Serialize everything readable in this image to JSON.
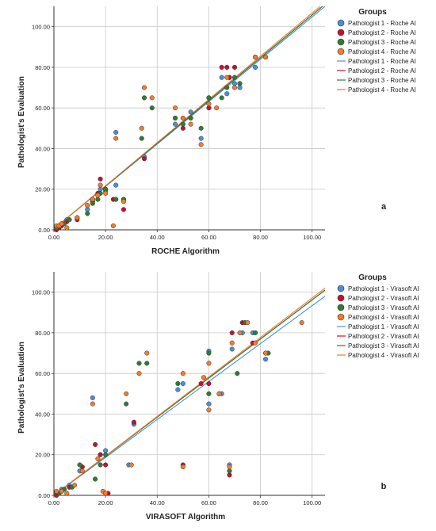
{
  "chart_data": [
    {
      "type": "scatter",
      "panel_label": "a",
      "xlabel": "ROCHE Algorithm",
      "ylabel": "Pathologist's Evaluation",
      "xlim": [
        0,
        105
      ],
      "ylim": [
        0,
        110
      ],
      "x_ticks": [
        0,
        20,
        40,
        60,
        80,
        100
      ],
      "y_ticks": [
        0,
        20,
        40,
        60,
        80,
        100
      ],
      "x_tick_labels": [
        "0.00",
        "20.00",
        "40.00",
        "60.00",
        "80.00",
        "100.00"
      ],
      "y_tick_labels": [
        "0.00",
        "20.00",
        "40.00",
        "60.00",
        "80.00",
        "100.00"
      ],
      "grid": true,
      "legend_title": "Groups",
      "legend_position": "right",
      "series": [
        {
          "name": "Pathologist 1 - Roche AI",
          "color": "#4a90d9",
          "points": [
            [
              1,
              1
            ],
            [
              2,
              2
            ],
            [
              3,
              3
            ],
            [
              5,
              5
            ],
            [
              9,
              6
            ],
            [
              13,
              10
            ],
            [
              15,
              15
            ],
            [
              18,
              20
            ],
            [
              20,
              19
            ],
            [
              24,
              48
            ],
            [
              24,
              22
            ],
            [
              27,
              15
            ],
            [
              35,
              36
            ],
            [
              47,
              52
            ],
            [
              50,
              55
            ],
            [
              53,
              58
            ],
            [
              57,
              45
            ],
            [
              60,
              65
            ],
            [
              65,
              75
            ],
            [
              67,
              67
            ],
            [
              68,
              75
            ],
            [
              70,
              72
            ],
            [
              72,
              70
            ],
            [
              78,
              80
            ],
            [
              78,
              85
            ]
          ],
          "fit": [
            [
              0,
              0.5
            ],
            [
              105,
              110
            ]
          ]
        },
        {
          "name": "Pathologist 2 - Roche AI",
          "color": "#c8102e",
          "points": [
            [
              1,
              0
            ],
            [
              2,
              1
            ],
            [
              3,
              2
            ],
            [
              5,
              4
            ],
            [
              9,
              5
            ],
            [
              13,
              12
            ],
            [
              15,
              14
            ],
            [
              17,
              18
            ],
            [
              18,
              25
            ],
            [
              20,
              20
            ],
            [
              23,
              15
            ],
            [
              24,
              15
            ],
            [
              27,
              10
            ],
            [
              35,
              35
            ],
            [
              47,
              55
            ],
            [
              50,
              50
            ],
            [
              53,
              55
            ],
            [
              60,
              60
            ],
            [
              65,
              80
            ],
            [
              67,
              80
            ],
            [
              68,
              75
            ],
            [
              70,
              80
            ],
            [
              72,
              72
            ],
            [
              78,
              85
            ],
            [
              82,
              85
            ]
          ],
          "fit": [
            [
              0,
              0.5
            ],
            [
              105,
              111
            ]
          ]
        },
        {
          "name": "Pathologist 3 - Roche AI",
          "color": "#2e7d32",
          "points": [
            [
              1,
              1
            ],
            [
              2,
              2
            ],
            [
              4,
              3
            ],
            [
              6,
              5
            ],
            [
              9,
              6
            ],
            [
              13,
              8
            ],
            [
              15,
              13
            ],
            [
              17,
              15
            ],
            [
              18,
              18
            ],
            [
              20,
              20
            ],
            [
              24,
              15
            ],
            [
              27,
              15
            ],
            [
              34,
              45
            ],
            [
              35,
              65
            ],
            [
              38,
              60
            ],
            [
              47,
              55
            ],
            [
              50,
              52
            ],
            [
              53,
              55
            ],
            [
              57,
              50
            ],
            [
              60,
              65
            ],
            [
              65,
              65
            ],
            [
              67,
              70
            ],
            [
              70,
              75
            ],
            [
              72,
              72
            ],
            [
              78,
              85
            ]
          ],
          "fit": [
            [
              0,
              0.5
            ],
            [
              105,
              111
            ]
          ]
        },
        {
          "name": "Pathologist 4 - Roche AI",
          "color": "#f07d2e",
          "points": [
            [
              1,
              2
            ],
            [
              2,
              2
            ],
            [
              3,
              3
            ],
            [
              5,
              1
            ],
            [
              9,
              6
            ],
            [
              13,
              12
            ],
            [
              15,
              15
            ],
            [
              17,
              17
            ],
            [
              18,
              22
            ],
            [
              20,
              18
            ],
            [
              23,
              2
            ],
            [
              24,
              45
            ],
            [
              27,
              14
            ],
            [
              34,
              50
            ],
            [
              35,
              70
            ],
            [
              38,
              65
            ],
            [
              47,
              60
            ],
            [
              50,
              55
            ],
            [
              53,
              52
            ],
            [
              57,
              42
            ],
            [
              60,
              62
            ],
            [
              63,
              60
            ],
            [
              67,
              75
            ],
            [
              70,
              70
            ],
            [
              78,
              85
            ],
            [
              82,
              85
            ]
          ],
          "fit": [
            [
              0,
              0.5
            ],
            [
              105,
              112
            ]
          ]
        }
      ]
    },
    {
      "type": "scatter",
      "panel_label": "b",
      "xlabel": "VIRASOFT Algorithm",
      "ylabel": "Pathologist's Evaluation",
      "xlim": [
        0,
        105
      ],
      "ylim": [
        0,
        110
      ],
      "x_ticks": [
        0,
        20,
        40,
        60,
        80,
        100
      ],
      "y_ticks": [
        0,
        20,
        40,
        60,
        80,
        100
      ],
      "x_tick_labels": [
        "0.00",
        "20.00",
        "40.00",
        "60.00",
        "80.00",
        "100.00"
      ],
      "y_tick_labels": [
        "0.00",
        "20.00",
        "40.00",
        "60.00",
        "80.00",
        "100.00"
      ],
      "grid": true,
      "legend_title": "Groups",
      "legend_position": "right",
      "series": [
        {
          "name": "Pathologist 1 - Virasoft AI",
          "color": "#4a90d9",
          "points": [
            [
              1,
              1
            ],
            [
              3,
              3
            ],
            [
              6,
              5
            ],
            [
              10,
              12
            ],
            [
              15,
              48
            ],
            [
              18,
              20
            ],
            [
              20,
              22
            ],
            [
              29,
              15
            ],
            [
              31,
              35
            ],
            [
              48,
              52
            ],
            [
              50,
              55
            ],
            [
              60,
              45
            ],
            [
              60,
              71
            ],
            [
              65,
              50
            ],
            [
              68,
              15
            ],
            [
              69,
              72
            ],
            [
              73,
              80
            ],
            [
              77,
              80
            ],
            [
              82,
              67
            ]
          ],
          "fit": [
            [
              0,
              0
            ],
            [
              105,
              98
            ]
          ]
        },
        {
          "name": "Pathologist 2 - Virasoft AI",
          "color": "#c8102e",
          "points": [
            [
              1,
              0
            ],
            [
              3,
              2
            ],
            [
              6,
              4
            ],
            [
              11,
              14
            ],
            [
              16,
              25
            ],
            [
              18,
              20
            ],
            [
              20,
              15
            ],
            [
              21,
              1
            ],
            [
              31,
              36
            ],
            [
              50,
              15
            ],
            [
              57,
              55
            ],
            [
              60,
              55
            ],
            [
              64,
              50
            ],
            [
              68,
              10
            ],
            [
              69,
              80
            ],
            [
              73,
              85
            ],
            [
              77,
              75
            ],
            [
              82,
              70
            ]
          ],
          "fit": [
            [
              0,
              0
            ],
            [
              105,
              101
            ]
          ]
        },
        {
          "name": "Pathologist 3 - Virasoft AI",
          "color": "#2e7d32",
          "points": [
            [
              2,
              1
            ],
            [
              4,
              3
            ],
            [
              7,
              4
            ],
            [
              10,
              15
            ],
            [
              16,
              8
            ],
            [
              18,
              15
            ],
            [
              20,
              20
            ],
            [
              28,
              45
            ],
            [
              33,
              65
            ],
            [
              36,
              65
            ],
            [
              48,
              55
            ],
            [
              60,
              50
            ],
            [
              60,
              70
            ],
            [
              68,
              12
            ],
            [
              71,
              60
            ],
            [
              74,
              85
            ],
            [
              78,
              80
            ],
            [
              83,
              70
            ]
          ],
          "fit": [
            [
              0,
              0
            ],
            [
              105,
              101
            ]
          ]
        },
        {
          "name": "Pathologist 4 - Virasoft AI",
          "color": "#f07d2e",
          "points": [
            [
              1,
              2
            ],
            [
              3,
              2
            ],
            [
              5,
              1
            ],
            [
              8,
              5
            ],
            [
              11,
              12
            ],
            [
              15,
              45
            ],
            [
              17,
              18
            ],
            [
              19,
              2
            ],
            [
              20,
              1
            ],
            [
              28,
              50
            ],
            [
              30,
              15
            ],
            [
              33,
              60
            ],
            [
              36,
              70
            ],
            [
              50,
              60
            ],
            [
              50,
              14
            ],
            [
              58,
              58
            ],
            [
              60,
              42
            ],
            [
              60,
              65
            ],
            [
              64,
              50
            ],
            [
              68,
              14
            ],
            [
              69,
              75
            ],
            [
              72,
              80
            ],
            [
              75,
              85
            ],
            [
              78,
              75
            ],
            [
              82,
              70
            ],
            [
              96,
              85
            ]
          ],
          "fit": [
            [
              0,
              0
            ],
            [
              105,
              102
            ]
          ]
        }
      ]
    }
  ]
}
